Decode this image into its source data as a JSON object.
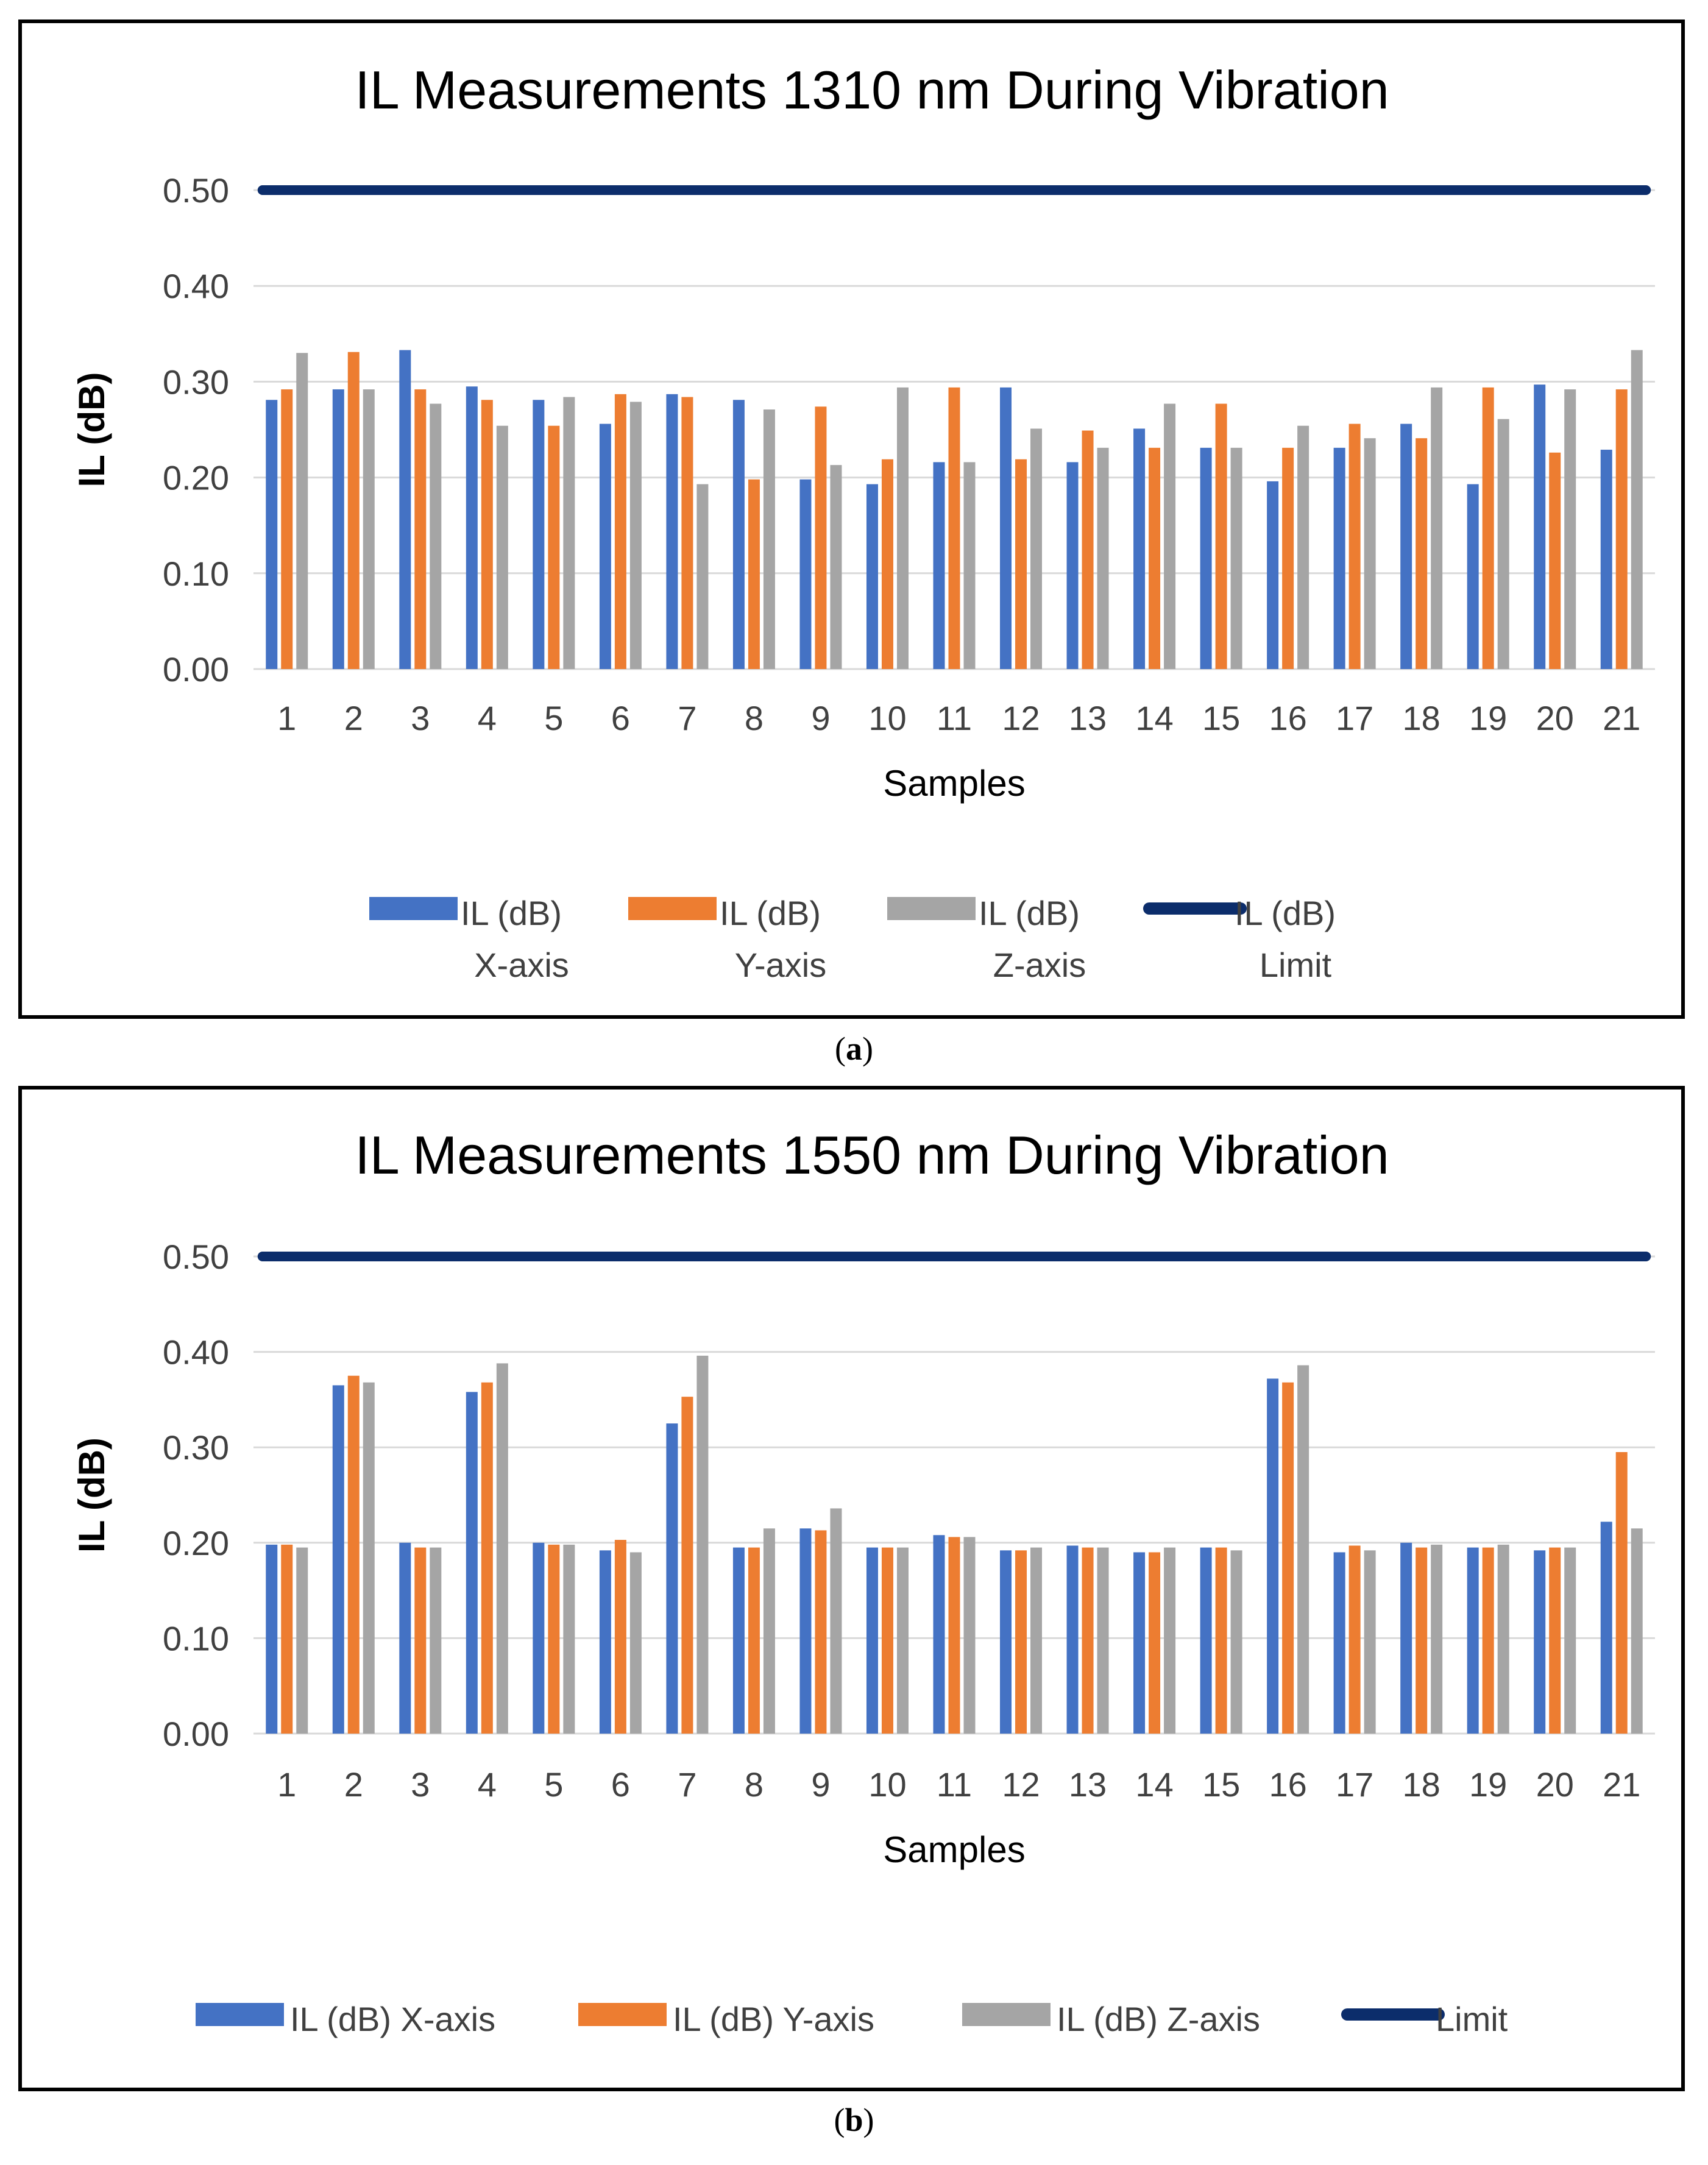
{
  "colors": {
    "x": "#4472C4",
    "y": "#ED7D31",
    "z": "#A5A5A5",
    "limit": "#0C2D6B",
    "grid": "#D9D9D9",
    "text": "#404040"
  },
  "chart_data": [
    {
      "type": "bar",
      "panel_label": "a",
      "title": "IL Measurements 1310 nm During Vibration",
      "xlabel": "Samples",
      "ylabel": "IL (dB)",
      "ylim": [
        0,
        0.5
      ],
      "yticks": [
        "0.00",
        "0.10",
        "0.20",
        "0.30",
        "0.40",
        "0.50"
      ],
      "categories": [
        "1",
        "2",
        "3",
        "4",
        "5",
        "6",
        "7",
        "8",
        "9",
        "10",
        "11",
        "12",
        "13",
        "14",
        "15",
        "16",
        "17",
        "18",
        "19",
        "20",
        "21"
      ],
      "series": [
        {
          "name": "IL (dB) X-axis",
          "legend_lines": [
            "IL (dB)",
            "X-axis"
          ],
          "color_key": "x",
          "values": [
            0.281,
            0.292,
            0.333,
            0.295,
            0.281,
            0.256,
            0.287,
            0.281,
            0.198,
            0.193,
            0.216,
            0.294,
            0.216,
            0.251,
            0.231,
            0.196,
            0.231,
            0.256,
            0.193,
            0.297,
            0.229
          ]
        },
        {
          "name": "IL (dB) Y-axis",
          "legend_lines": [
            "IL (dB)",
            "Y-axis"
          ],
          "color_key": "y",
          "values": [
            0.292,
            0.331,
            0.292,
            0.281,
            0.254,
            0.287,
            0.284,
            0.198,
            0.274,
            0.219,
            0.294,
            0.219,
            0.249,
            0.231,
            0.277,
            0.231,
            0.256,
            0.241,
            0.294,
            0.226,
            0.292
          ]
        },
        {
          "name": "IL (dB) Z-axis",
          "legend_lines": [
            "IL (dB)",
            "Z-axis"
          ],
          "color_key": "z",
          "values": [
            0.33,
            0.292,
            0.277,
            0.254,
            0.284,
            0.279,
            0.193,
            0.271,
            0.213,
            0.294,
            0.216,
            0.251,
            0.231,
            0.277,
            0.231,
            0.254,
            0.241,
            0.294,
            0.261,
            0.292,
            0.333
          ]
        }
      ],
      "limit": {
        "name": "IL (dB) Limit",
        "legend_lines": [
          "IL (dB)",
          "Limit"
        ],
        "value": 0.5
      }
    },
    {
      "type": "bar",
      "panel_label": "b",
      "title": "IL Measurements 1550 nm During Vibration",
      "xlabel": "Samples",
      "ylabel": "IL (dB)",
      "ylim": [
        0,
        0.5
      ],
      "yticks": [
        "0.00",
        "0.10",
        "0.20",
        "0.30",
        "0.40",
        "0.50"
      ],
      "categories": [
        "1",
        "2",
        "3",
        "4",
        "5",
        "6",
        "7",
        "8",
        "9",
        "10",
        "11",
        "12",
        "13",
        "14",
        "15",
        "16",
        "17",
        "18",
        "19",
        "20",
        "21"
      ],
      "series": [
        {
          "name": "IL (dB) X-axis",
          "legend_lines": [
            "IL (dB) X-axis"
          ],
          "color_key": "x",
          "values": [
            0.198,
            0.365,
            0.2,
            0.358,
            0.2,
            0.192,
            0.325,
            0.195,
            0.215,
            0.195,
            0.208,
            0.192,
            0.197,
            0.19,
            0.195,
            0.372,
            0.19,
            0.2,
            0.195,
            0.192,
            0.222
          ]
        },
        {
          "name": "IL (dB) Y-axis",
          "legend_lines": [
            "IL (dB) Y-axis"
          ],
          "color_key": "y",
          "values": [
            0.198,
            0.375,
            0.195,
            0.368,
            0.198,
            0.203,
            0.353,
            0.195,
            0.213,
            0.195,
            0.206,
            0.192,
            0.195,
            0.19,
            0.195,
            0.368,
            0.197,
            0.195,
            0.195,
            0.195,
            0.295
          ]
        },
        {
          "name": "IL (dB) Z-axis",
          "legend_lines": [
            "IL (dB) Z-axis"
          ],
          "color_key": "z",
          "values": [
            0.195,
            0.368,
            0.195,
            0.388,
            0.198,
            0.19,
            0.396,
            0.215,
            0.236,
            0.195,
            0.206,
            0.195,
            0.195,
            0.195,
            0.192,
            0.386,
            0.192,
            0.198,
            0.198,
            0.195,
            0.215
          ]
        }
      ],
      "limit": {
        "name": "Limit",
        "legend_lines": [
          "Limit"
        ],
        "value": 0.5
      }
    }
  ]
}
